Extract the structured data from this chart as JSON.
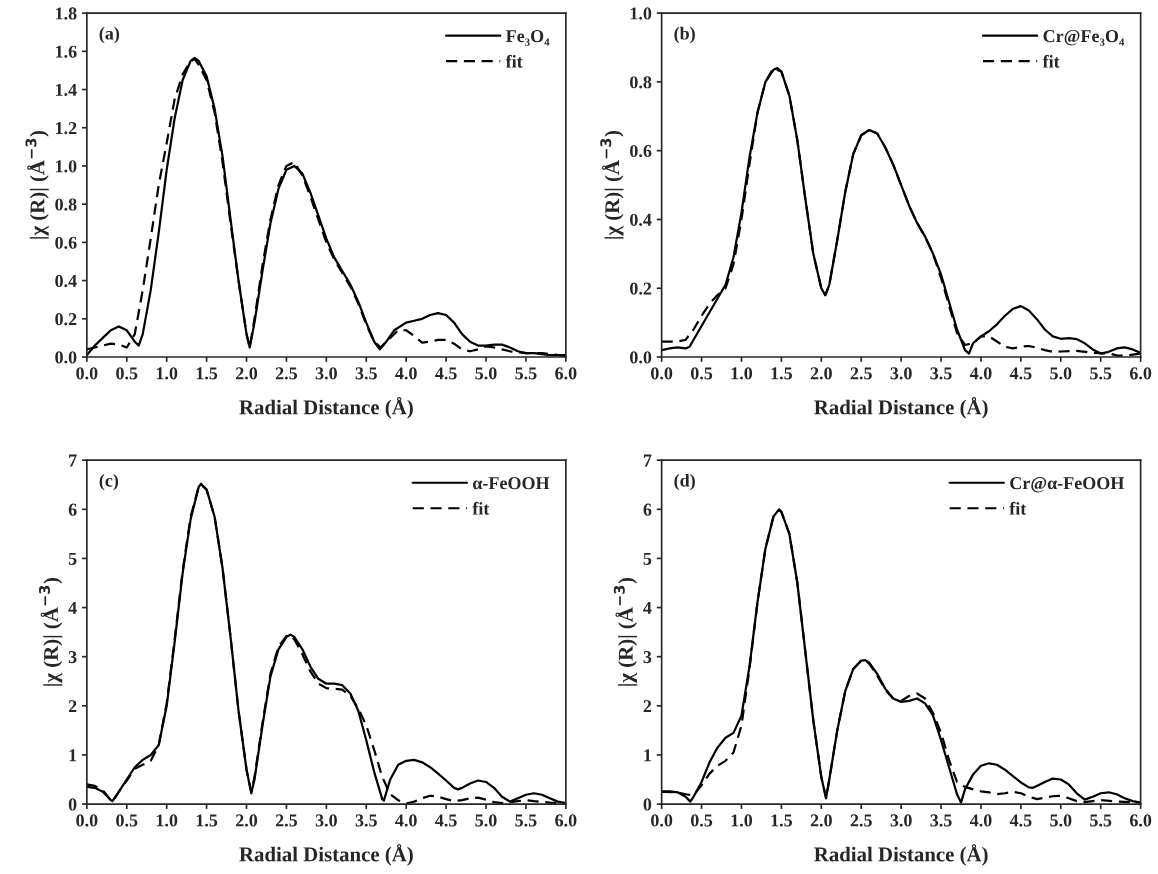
{
  "chart_data": [
    {
      "type": "line",
      "xlabel": "Radial Distance (Å)",
      "ylabel": "|χ (R)| (Å$^{−3}$)",
      "annotations": [
        "(a)"
      ],
      "legend": "top right",
      "grid": false,
      "xlim": [
        0,
        6
      ],
      "ylim": [
        0,
        1.8
      ],
      "xticks": [
        {
          "value": 0,
          "label": "0.0"
        },
        {
          "value": 0.5,
          "label": "0.5"
        },
        {
          "value": 1,
          "label": "1.0"
        },
        {
          "value": 1.5,
          "label": "1.5"
        },
        {
          "value": 2,
          "label": "2.0"
        },
        {
          "value": 2.5,
          "label": "2.5"
        },
        {
          "value": 3,
          "label": "3.0"
        },
        {
          "value": 3.5,
          "label": "3.5"
        },
        {
          "value": 4,
          "label": "4.0"
        },
        {
          "value": 4.5,
          "label": "4.5"
        },
        {
          "value": 5,
          "label": "5.0"
        },
        {
          "value": 5.5,
          "label": "5.5"
        },
        {
          "value": 6,
          "label": "6.0"
        }
      ],
      "yticks": [
        {
          "value": 0,
          "label": "0.0"
        },
        {
          "value": 0.2,
          "label": "0.2"
        },
        {
          "value": 0.4,
          "label": "0.4"
        },
        {
          "value": 0.6,
          "label": "0.6"
        },
        {
          "value": 0.8,
          "label": "0.8"
        },
        {
          "value": 1,
          "label": "1.0"
        },
        {
          "value": 1.2,
          "label": "1.2"
        },
        {
          "value": 1.4,
          "label": "1.4"
        },
        {
          "value": 1.6,
          "label": "1.6"
        },
        {
          "value": 1.8,
          "label": "1.8"
        }
      ],
      "series": [
        {
          "name": "Fe₃O₄",
          "color": "#000000",
          "line_style": "solid",
          "x": [
            0,
            0.1,
            0.2,
            0.3,
            0.4,
            0.5,
            0.6,
            0.65,
            0.7,
            0.8,
            0.9,
            1.0,
            1.1,
            1.2,
            1.3,
            1.35,
            1.4,
            1.5,
            1.6,
            1.7,
            1.8,
            1.9,
            2.0,
            2.04,
            2.1,
            2.2,
            2.3,
            2.4,
            2.5,
            2.6,
            2.7,
            2.8,
            2.9,
            3.0,
            3.1,
            3.2,
            3.3,
            3.4,
            3.5,
            3.6,
            3.67,
            3.75,
            3.85,
            4.0,
            4.1,
            4.2,
            4.3,
            4.4,
            4.5,
            4.6,
            4.7,
            4.8,
            4.9,
            5.0,
            5.1,
            5.2,
            5.3,
            5.4,
            5.5,
            5.6,
            5.8,
            6.0
          ],
          "values": [
            0.01,
            0.06,
            0.1,
            0.14,
            0.16,
            0.14,
            0.08,
            0.06,
            0.12,
            0.35,
            0.65,
            0.98,
            1.25,
            1.45,
            1.55,
            1.565,
            1.55,
            1.47,
            1.3,
            1.05,
            0.72,
            0.4,
            0.12,
            0.05,
            0.18,
            0.45,
            0.7,
            0.88,
            0.98,
            1.0,
            0.96,
            0.86,
            0.74,
            0.62,
            0.52,
            0.45,
            0.38,
            0.29,
            0.18,
            0.08,
            0.04,
            0.08,
            0.14,
            0.18,
            0.19,
            0.2,
            0.22,
            0.23,
            0.22,
            0.18,
            0.12,
            0.08,
            0.06,
            0.06,
            0.065,
            0.065,
            0.05,
            0.03,
            0.02,
            0.02,
            0.01,
            0.01
          ]
        },
        {
          "name": "fit",
          "color": "#000000",
          "line_style": "dashed",
          "x": [
            0,
            0.1,
            0.2,
            0.3,
            0.4,
            0.5,
            0.6,
            0.7,
            0.8,
            0.9,
            1.0,
            1.1,
            1.2,
            1.3,
            1.35,
            1.4,
            1.5,
            1.6,
            1.7,
            1.8,
            1.9,
            2.0,
            2.04,
            2.1,
            2.2,
            2.3,
            2.4,
            2.5,
            2.6,
            2.7,
            2.8,
            2.9,
            3.0,
            3.1,
            3.2,
            3.3,
            3.4,
            3.5,
            3.6,
            3.68,
            3.8,
            3.9,
            4.0,
            4.1,
            4.2,
            4.3,
            4.4,
            4.5,
            4.6,
            4.7,
            4.8,
            4.9,
            5.0,
            5.1,
            5.2,
            5.3,
            5.5,
            5.7,
            6.0
          ],
          "values": [
            0.04,
            0.05,
            0.06,
            0.07,
            0.065,
            0.05,
            0.12,
            0.35,
            0.62,
            0.9,
            1.12,
            1.35,
            1.48,
            1.55,
            1.56,
            1.53,
            1.45,
            1.28,
            1.02,
            0.7,
            0.4,
            0.12,
            0.05,
            0.2,
            0.48,
            0.72,
            0.9,
            1.0,
            1.02,
            0.95,
            0.84,
            0.72,
            0.6,
            0.51,
            0.44,
            0.37,
            0.28,
            0.17,
            0.08,
            0.05,
            0.1,
            0.14,
            0.14,
            0.11,
            0.075,
            0.08,
            0.09,
            0.09,
            0.07,
            0.04,
            0.03,
            0.04,
            0.055,
            0.05,
            0.04,
            0.03,
            0.02,
            0.02,
            0.005
          ]
        }
      ]
    },
    {
      "type": "line",
      "xlabel": "Radial Distance (Å)",
      "ylabel": "|χ (R)| (Å$^{−3}$)",
      "annotations": [
        "(b)"
      ],
      "legend": "top right",
      "grid": false,
      "xlim": [
        0,
        6
      ],
      "ylim": [
        0,
        1.0
      ],
      "xticks": [
        {
          "value": 0,
          "label": "0.0"
        },
        {
          "value": 0.5,
          "label": "0.5"
        },
        {
          "value": 1,
          "label": "1.0"
        },
        {
          "value": 1.5,
          "label": "1.5"
        },
        {
          "value": 2,
          "label": "2.0"
        },
        {
          "value": 2.5,
          "label": "2.5"
        },
        {
          "value": 3,
          "label": "3.0"
        },
        {
          "value": 3.5,
          "label": "3.5"
        },
        {
          "value": 4,
          "label": "4.0"
        },
        {
          "value": 4.5,
          "label": "4.5"
        },
        {
          "value": 5,
          "label": "5.0"
        },
        {
          "value": 5.5,
          "label": "5.5"
        },
        {
          "value": 6,
          "label": "6.0"
        }
      ],
      "yticks": [
        {
          "value": 0,
          "label": "0.0"
        },
        {
          "value": 0.2,
          "label": "0.2"
        },
        {
          "value": 0.4,
          "label": "0.4"
        },
        {
          "value": 0.6,
          "label": "0.6"
        },
        {
          "value": 0.8,
          "label": "0.8"
        },
        {
          "value": 1,
          "label": "1.0"
        }
      ],
      "series": [
        {
          "name": "Cr@Fe₃O₄",
          "color": "#000000",
          "line_style": "solid",
          "x": [
            0,
            0.1,
            0.2,
            0.3,
            0.35,
            0.4,
            0.5,
            0.6,
            0.7,
            0.8,
            0.9,
            1.0,
            1.1,
            1.2,
            1.3,
            1.4,
            1.45,
            1.5,
            1.6,
            1.7,
            1.8,
            1.9,
            2.0,
            2.05,
            2.1,
            2.2,
            2.3,
            2.4,
            2.5,
            2.6,
            2.7,
            2.8,
            2.9,
            3.0,
            3.1,
            3.2,
            3.3,
            3.4,
            3.5,
            3.6,
            3.7,
            3.8,
            3.85,
            3.9,
            4.0,
            4.1,
            4.2,
            4.3,
            4.4,
            4.5,
            4.6,
            4.7,
            4.8,
            4.9,
            5.0,
            5.1,
            5.2,
            5.3,
            5.4,
            5.5,
            5.6,
            5.7,
            5.8,
            5.9,
            6.0
          ],
          "values": [
            0.02,
            0.025,
            0.028,
            0.025,
            0.03,
            0.05,
            0.09,
            0.13,
            0.17,
            0.21,
            0.29,
            0.42,
            0.58,
            0.71,
            0.8,
            0.835,
            0.84,
            0.83,
            0.76,
            0.63,
            0.46,
            0.3,
            0.2,
            0.18,
            0.21,
            0.34,
            0.48,
            0.59,
            0.645,
            0.66,
            0.65,
            0.61,
            0.56,
            0.5,
            0.44,
            0.39,
            0.35,
            0.3,
            0.24,
            0.16,
            0.08,
            0.02,
            0.01,
            0.04,
            0.06,
            0.075,
            0.095,
            0.12,
            0.14,
            0.148,
            0.135,
            0.11,
            0.08,
            0.06,
            0.053,
            0.055,
            0.052,
            0.04,
            0.022,
            0.01,
            0.015,
            0.025,
            0.028,
            0.022,
            0.012
          ]
        },
        {
          "name": "fit",
          "color": "#000000",
          "line_style": "dashed",
          "x": [
            0,
            0.2,
            0.3,
            0.4,
            0.5,
            0.6,
            0.7,
            0.8,
            0.9,
            1.0,
            1.1,
            1.2,
            1.3,
            1.4,
            1.5,
            1.6,
            1.7,
            1.8,
            1.9,
            2.0,
            2.05,
            2.1,
            2.2,
            2.3,
            2.4,
            2.5,
            2.6,
            2.7,
            2.8,
            2.9,
            3.0,
            3.1,
            3.2,
            3.3,
            3.4,
            3.5,
            3.6,
            3.7,
            3.8,
            3.9,
            4.0,
            4.1,
            4.2,
            4.3,
            4.4,
            4.5,
            4.6,
            4.7,
            4.8,
            4.9,
            5.0,
            5.2,
            5.4,
            5.6,
            5.7,
            5.8,
            6.0
          ],
          "values": [
            0.045,
            0.045,
            0.05,
            0.08,
            0.12,
            0.155,
            0.18,
            0.2,
            0.27,
            0.4,
            0.56,
            0.71,
            0.8,
            0.84,
            0.83,
            0.76,
            0.63,
            0.46,
            0.3,
            0.2,
            0.18,
            0.21,
            0.34,
            0.48,
            0.59,
            0.645,
            0.66,
            0.65,
            0.61,
            0.56,
            0.5,
            0.44,
            0.39,
            0.35,
            0.3,
            0.23,
            0.15,
            0.07,
            0.035,
            0.04,
            0.06,
            0.06,
            0.045,
            0.03,
            0.025,
            0.03,
            0.032,
            0.027,
            0.02,
            0.015,
            0.016,
            0.018,
            0.012,
            0.01,
            0.005,
            0.004,
            0.01
          ]
        }
      ]
    },
    {
      "type": "line",
      "xlabel": "Radial Distance (Å)",
      "ylabel": "|χ (R)| (Å$^{−3}$)",
      "annotations": [
        "(c)"
      ],
      "legend": "top right",
      "grid": false,
      "xlim": [
        0,
        6
      ],
      "ylim": [
        0,
        7
      ],
      "xticks": [
        {
          "value": 0,
          "label": "0.0"
        },
        {
          "value": 0.5,
          "label": "0.5"
        },
        {
          "value": 1,
          "label": "1.0"
        },
        {
          "value": 1.5,
          "label": "1.5"
        },
        {
          "value": 2,
          "label": "2.0"
        },
        {
          "value": 2.5,
          "label": "2.5"
        },
        {
          "value": 3,
          "label": "3.0"
        },
        {
          "value": 3.5,
          "label": "3.5"
        },
        {
          "value": 4,
          "label": "4.0"
        },
        {
          "value": 4.5,
          "label": "4.5"
        },
        {
          "value": 5,
          "label": "5.0"
        },
        {
          "value": 5.5,
          "label": "5.5"
        },
        {
          "value": 6,
          "label": "6.0"
        }
      ],
      "yticks": [
        0,
        1,
        2,
        3,
        4,
        5,
        6,
        7
      ],
      "series": [
        {
          "name": "α-FeOOH",
          "color": "#000000",
          "line_style": "solid",
          "x": [
            0,
            0.1,
            0.2,
            0.3,
            0.32,
            0.4,
            0.5,
            0.6,
            0.7,
            0.8,
            0.9,
            1.0,
            1.1,
            1.2,
            1.3,
            1.4,
            1.43,
            1.5,
            1.6,
            1.7,
            1.8,
            1.9,
            2.0,
            2.06,
            2.1,
            2.2,
            2.3,
            2.4,
            2.5,
            2.55,
            2.6,
            2.7,
            2.8,
            2.9,
            3.0,
            3.1,
            3.2,
            3.3,
            3.4,
            3.5,
            3.6,
            3.7,
            3.72,
            3.8,
            3.9,
            4.0,
            4.1,
            4.2,
            4.3,
            4.4,
            4.5,
            4.6,
            4.65,
            4.7,
            4.8,
            4.9,
            5.0,
            5.1,
            5.2,
            5.3,
            5.4,
            5.5,
            5.6,
            5.7,
            5.8,
            5.9,
            6.0
          ],
          "values": [
            0.35,
            0.33,
            0.25,
            0.08,
            0.06,
            0.25,
            0.5,
            0.75,
            0.9,
            1.0,
            1.2,
            2.0,
            3.3,
            4.7,
            5.8,
            6.45,
            6.52,
            6.4,
            5.85,
            4.8,
            3.4,
            1.9,
            0.7,
            0.22,
            0.5,
            1.6,
            2.6,
            3.15,
            3.4,
            3.45,
            3.4,
            3.15,
            2.8,
            2.55,
            2.45,
            2.45,
            2.42,
            2.25,
            1.9,
            1.3,
            0.65,
            0.1,
            0.07,
            0.5,
            0.8,
            0.88,
            0.9,
            0.85,
            0.75,
            0.62,
            0.48,
            0.33,
            0.3,
            0.33,
            0.42,
            0.48,
            0.45,
            0.33,
            0.15,
            0.05,
            0.12,
            0.19,
            0.22,
            0.19,
            0.12,
            0.05,
            0.02
          ]
        },
        {
          "name": "fit",
          "color": "#000000",
          "line_style": "dashed",
          "x": [
            0,
            0.1,
            0.2,
            0.3,
            0.33,
            0.4,
            0.5,
            0.6,
            0.7,
            0.8,
            0.9,
            1.0,
            1.1,
            1.2,
            1.3,
            1.4,
            1.43,
            1.5,
            1.6,
            1.7,
            1.8,
            1.9,
            2.0,
            2.06,
            2.1,
            2.2,
            2.3,
            2.4,
            2.5,
            2.55,
            2.6,
            2.7,
            2.8,
            2.9,
            3.0,
            3.1,
            3.2,
            3.3,
            3.4,
            3.5,
            3.6,
            3.7,
            3.8,
            3.9,
            4.0,
            4.1,
            4.2,
            4.3,
            4.4,
            4.5,
            4.6,
            4.7,
            4.8,
            4.9,
            5.0,
            5.1,
            5.2,
            5.4,
            5.5,
            5.6,
            5.8,
            6.0
          ],
          "values": [
            0.4,
            0.37,
            0.28,
            0.08,
            0.06,
            0.25,
            0.48,
            0.72,
            0.8,
            0.88,
            1.2,
            2.05,
            3.35,
            4.75,
            5.85,
            6.45,
            6.5,
            6.4,
            5.85,
            4.8,
            3.4,
            1.9,
            0.7,
            0.25,
            0.55,
            1.65,
            2.65,
            3.2,
            3.42,
            3.43,
            3.35,
            3.05,
            2.7,
            2.45,
            2.36,
            2.35,
            2.33,
            2.2,
            1.95,
            1.6,
            1.1,
            0.55,
            0.2,
            0.08,
            0.01,
            0.05,
            0.12,
            0.17,
            0.15,
            0.1,
            0.06,
            0.08,
            0.12,
            0.13,
            0.09,
            0.04,
            0.02,
            0.06,
            0.08,
            0.06,
            0.03,
            0.01
          ]
        }
      ]
    },
    {
      "type": "line",
      "xlabel": "Radial Distance (Å)",
      "ylabel": "|χ (R)| (Å$^{−3}$)",
      "annotations": [
        "(d)"
      ],
      "legend": "top right",
      "grid": false,
      "xlim": [
        0,
        6
      ],
      "ylim": [
        0,
        7
      ],
      "xticks": [
        {
          "value": 0,
          "label": "0.0"
        },
        {
          "value": 0.5,
          "label": "0.5"
        },
        {
          "value": 1,
          "label": "1.0"
        },
        {
          "value": 1.5,
          "label": "1.5"
        },
        {
          "value": 2,
          "label": "2.0"
        },
        {
          "value": 2.5,
          "label": "2.5"
        },
        {
          "value": 3,
          "label": "3.0"
        },
        {
          "value": 3.5,
          "label": "3.5"
        },
        {
          "value": 4,
          "label": "4.0"
        },
        {
          "value": 4.5,
          "label": "4.5"
        },
        {
          "value": 5,
          "label": "5.0"
        },
        {
          "value": 5.5,
          "label": "5.5"
        },
        {
          "value": 6,
          "label": "6.0"
        }
      ],
      "yticks": [
        0,
        1,
        2,
        3,
        4,
        5,
        6,
        7
      ],
      "series": [
        {
          "name": "Cr@α-FeOOH",
          "color": "#000000",
          "line_style": "solid",
          "x": [
            0,
            0.1,
            0.2,
            0.3,
            0.36,
            0.4,
            0.5,
            0.6,
            0.7,
            0.8,
            0.9,
            1.0,
            1.1,
            1.2,
            1.3,
            1.4,
            1.47,
            1.5,
            1.6,
            1.7,
            1.8,
            1.9,
            2.0,
            2.06,
            2.1,
            2.2,
            2.3,
            2.4,
            2.5,
            2.55,
            2.6,
            2.7,
            2.8,
            2.9,
            3.0,
            3.1,
            3.2,
            3.3,
            3.4,
            3.5,
            3.6,
            3.7,
            3.75,
            3.8,
            3.9,
            4.0,
            4.1,
            4.2,
            4.3,
            4.4,
            4.5,
            4.6,
            4.65,
            4.7,
            4.8,
            4.9,
            5.0,
            5.1,
            5.2,
            5.3,
            5.4,
            5.5,
            5.6,
            5.7,
            5.8,
            5.9,
            6.0
          ],
          "values": [
            0.26,
            0.26,
            0.24,
            0.15,
            0.05,
            0.15,
            0.45,
            0.85,
            1.15,
            1.35,
            1.45,
            1.8,
            2.8,
            4.1,
            5.2,
            5.85,
            6.0,
            5.95,
            5.5,
            4.5,
            3.1,
            1.7,
            0.55,
            0.12,
            0.5,
            1.5,
            2.3,
            2.75,
            2.92,
            2.93,
            2.88,
            2.65,
            2.35,
            2.15,
            2.08,
            2.1,
            2.15,
            2.05,
            1.8,
            1.3,
            0.75,
            0.2,
            0.03,
            0.3,
            0.6,
            0.78,
            0.83,
            0.8,
            0.7,
            0.57,
            0.44,
            0.34,
            0.33,
            0.37,
            0.45,
            0.52,
            0.5,
            0.4,
            0.22,
            0.09,
            0.15,
            0.22,
            0.24,
            0.2,
            0.12,
            0.06,
            0.03
          ]
        },
        {
          "name": "fit",
          "color": "#000000",
          "line_style": "dashed",
          "x": [
            0,
            0.2,
            0.3,
            0.4,
            0.5,
            0.6,
            0.7,
            0.8,
            0.9,
            1.0,
            1.1,
            1.2,
            1.3,
            1.4,
            1.47,
            1.5,
            1.6,
            1.7,
            1.8,
            1.9,
            2.0,
            2.06,
            2.1,
            2.2,
            2.3,
            2.4,
            2.5,
            2.55,
            2.6,
            2.7,
            2.8,
            2.9,
            3.0,
            3.1,
            3.2,
            3.3,
            3.4,
            3.5,
            3.6,
            3.7,
            3.8,
            3.9,
            4.0,
            4.1,
            4.2,
            4.3,
            4.4,
            4.5,
            4.6,
            4.7,
            4.8,
            4.9,
            5.0,
            5.1,
            5.2,
            5.3,
            5.4,
            5.5,
            5.7,
            6.0
          ],
          "values": [
            0.25,
            0.24,
            0.2,
            0.18,
            0.38,
            0.62,
            0.78,
            0.88,
            1.05,
            1.6,
            2.75,
            4.1,
            5.2,
            5.85,
            5.98,
            5.95,
            5.5,
            4.5,
            3.1,
            1.7,
            0.55,
            0.12,
            0.5,
            1.5,
            2.3,
            2.75,
            2.92,
            2.92,
            2.86,
            2.62,
            2.33,
            2.15,
            2.1,
            2.2,
            2.25,
            2.15,
            1.85,
            1.45,
            0.9,
            0.45,
            0.35,
            0.3,
            0.26,
            0.24,
            0.2,
            0.22,
            0.25,
            0.22,
            0.15,
            0.1,
            0.13,
            0.16,
            0.17,
            0.12,
            0.06,
            0.04,
            0.06,
            0.08,
            0.05,
            0.03
          ]
        }
      ]
    }
  ]
}
